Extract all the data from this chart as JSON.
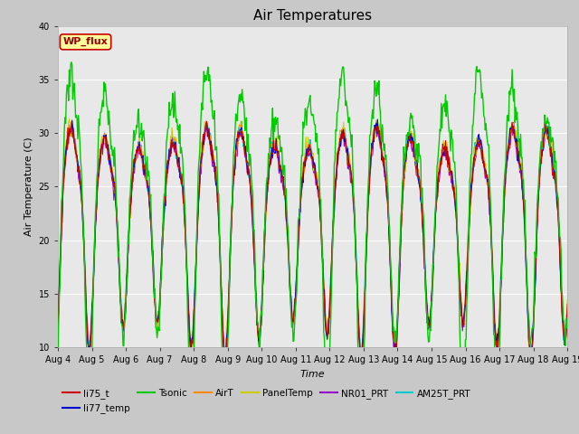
{
  "title": "Air Temperatures",
  "xlabel": "Time",
  "ylabel": "Air Temperature (C)",
  "ylim": [
    10,
    40
  ],
  "yticks": [
    10,
    15,
    20,
    25,
    30,
    35,
    40
  ],
  "xtick_labels": [
    "Aug 4",
    "Aug 5",
    "Aug 6",
    "Aug 7",
    "Aug 8",
    "Aug 9",
    "Aug 10",
    "Aug 11",
    "Aug 12",
    "Aug 13",
    "Aug 14",
    "Aug 15",
    "Aug 16",
    "Aug 17",
    "Aug 18",
    "Aug 19"
  ],
  "series": {
    "li75_t": {
      "color": "#cc0000",
      "lw": 0.8
    },
    "li77_temp": {
      "color": "#0000cc",
      "lw": 0.8
    },
    "Tsonic": {
      "color": "#00cc00",
      "lw": 1.0
    },
    "AirT": {
      "color": "#ff8800",
      "lw": 0.8
    },
    "PanelTemp": {
      "color": "#cccc00",
      "lw": 0.8
    },
    "NR01_PRT": {
      "color": "#9900cc",
      "lw": 0.8
    },
    "AM25T_PRT": {
      "color": "#00cccc",
      "lw": 1.2
    }
  },
  "plot_bg": "#e8e8e8",
  "fig_bg": "#c8c8c8",
  "grid_color": "#ffffff",
  "wp_flux_box": {
    "text": "WP_flux",
    "facecolor": "#ffff99",
    "edgecolor": "#cc0000",
    "textcolor": "#990000",
    "fontsize": 8,
    "fontweight": "bold"
  },
  "title_fontsize": 11,
  "axis_label_fontsize": 8,
  "tick_fontsize": 7,
  "legend_fontsize": 7.5
}
